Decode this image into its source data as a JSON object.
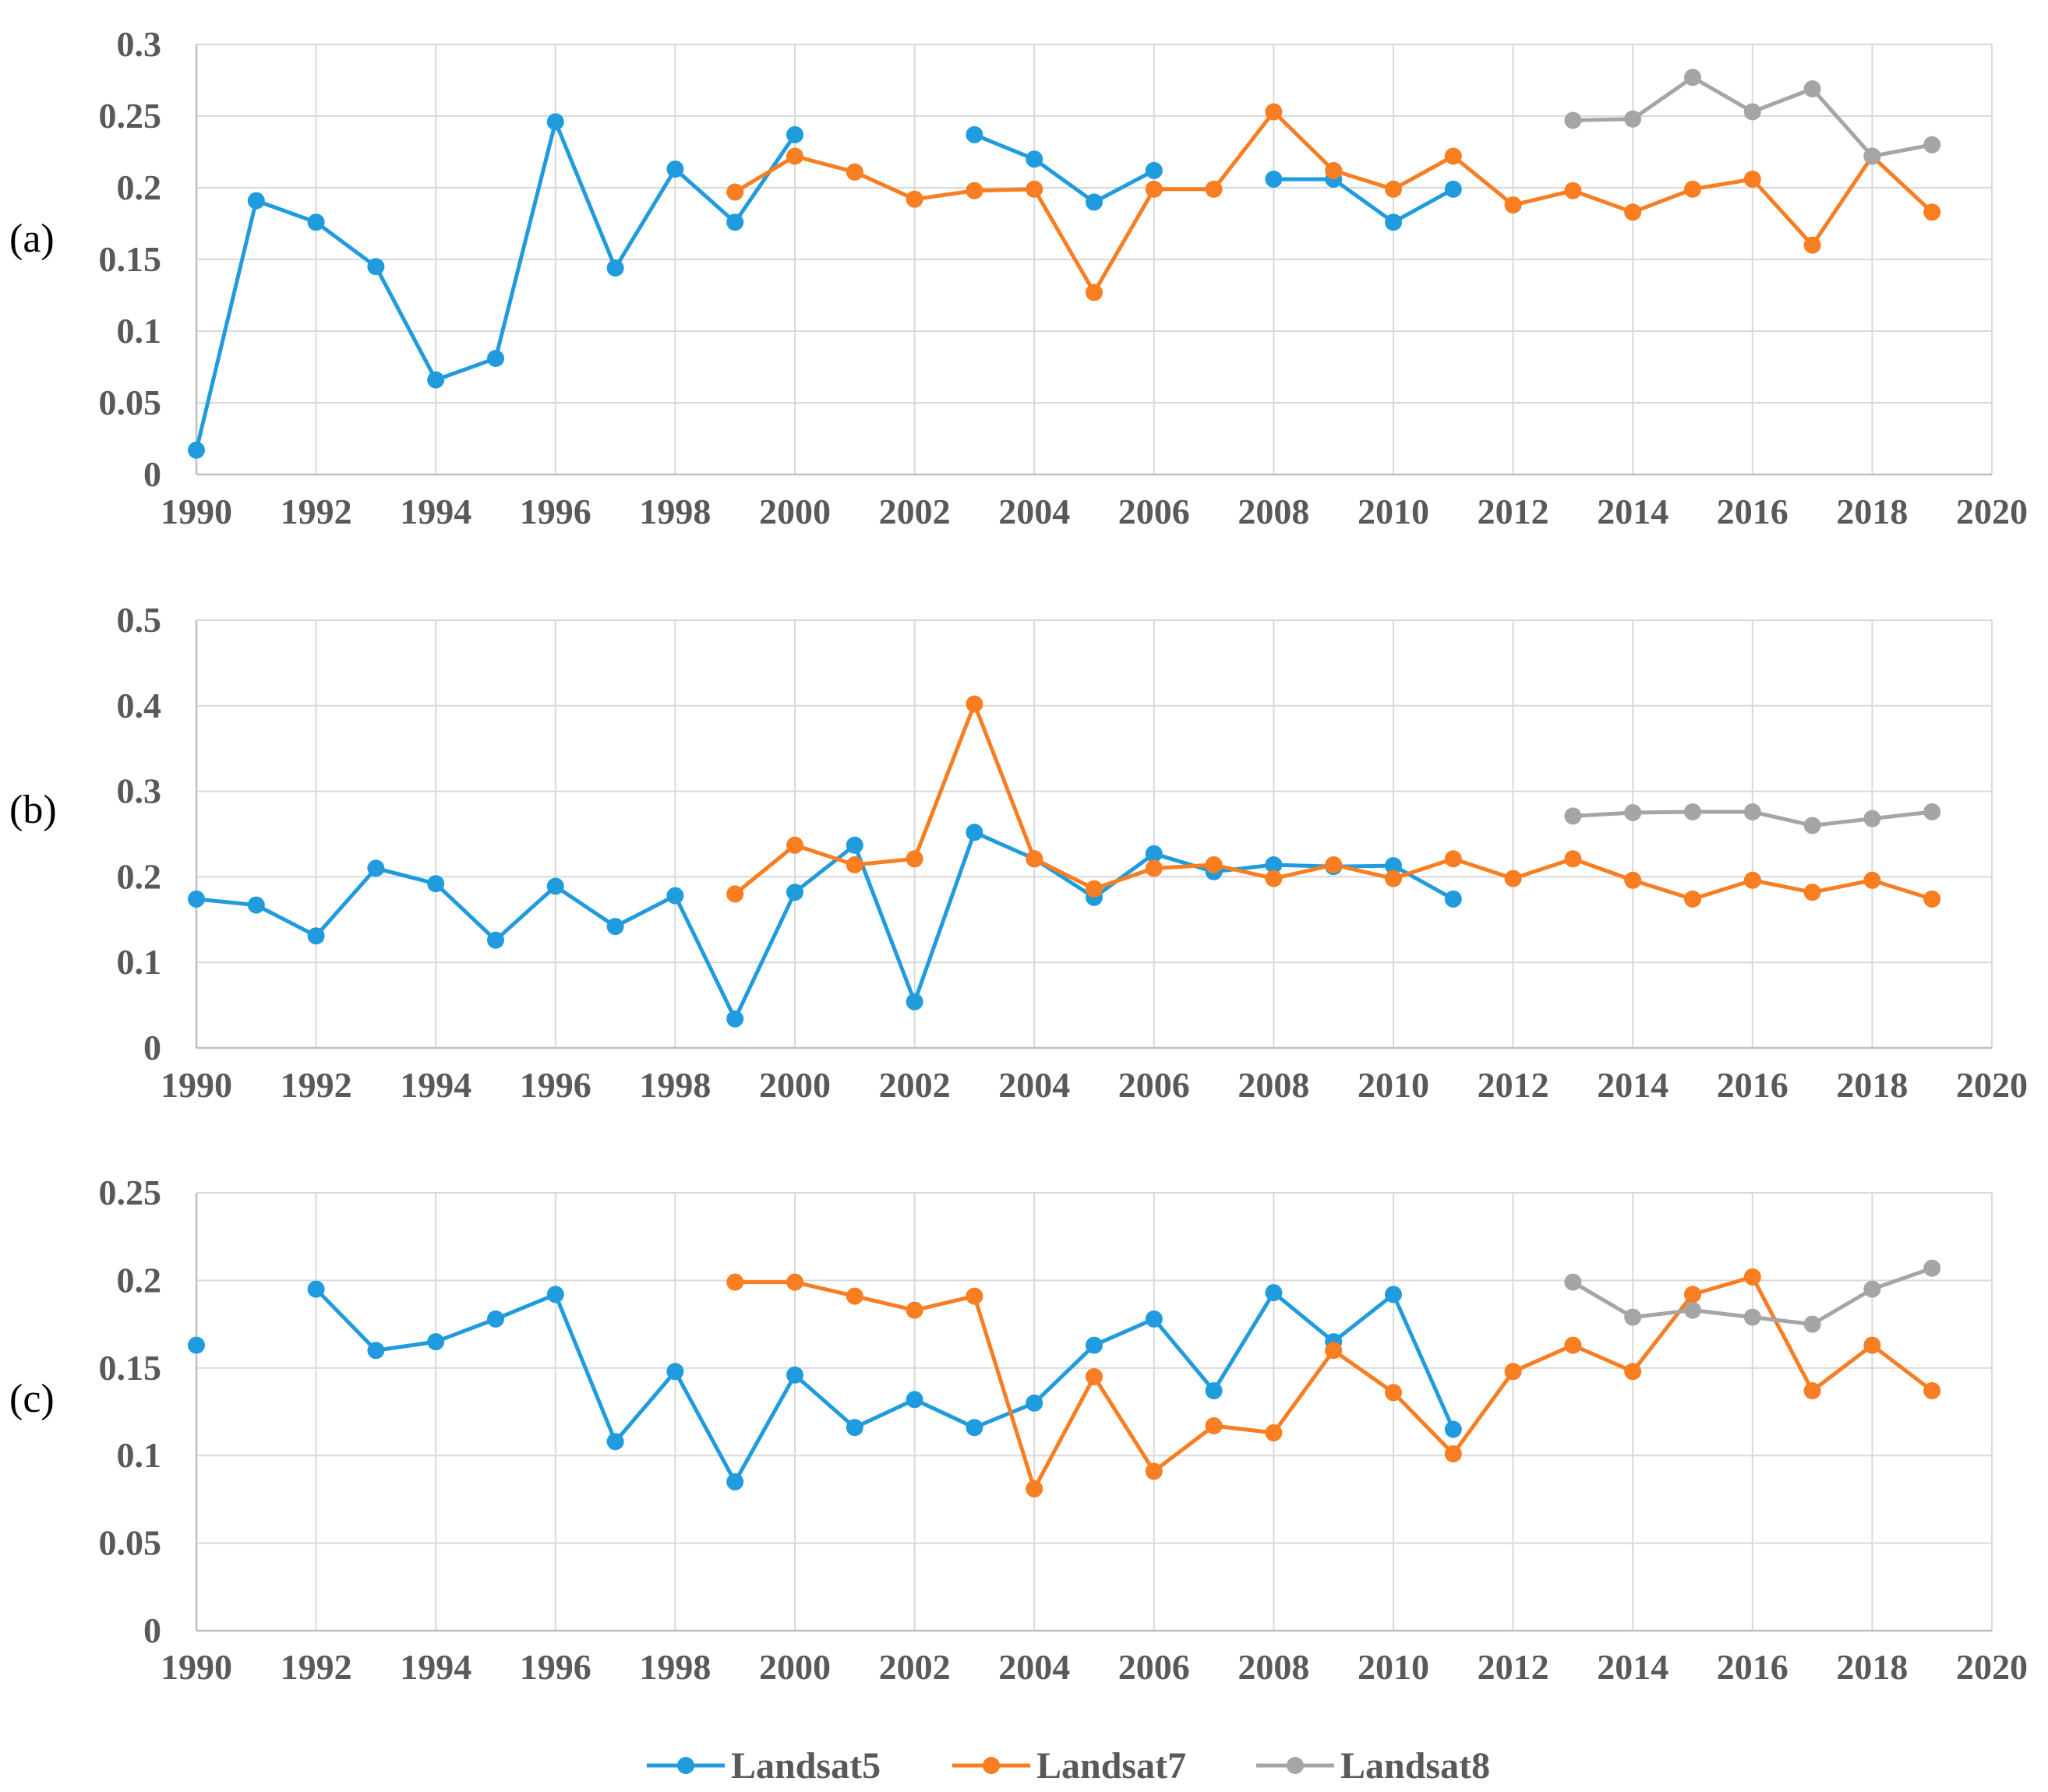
{
  "colors": {
    "Landsat5": "#1F9BDE",
    "Landsat7": "#F97D21",
    "Landsat8": "#A5A5A5",
    "grid": "#D9D9D9",
    "axis": "#BFBFBF"
  },
  "legend": [
    "Landsat5",
    "Landsat7",
    "Landsat8"
  ],
  "chart_data": [
    {
      "type": "line",
      "panel_label": "(a)",
      "x_ticks": [
        "1990",
        "1992",
        "1994",
        "1996",
        "1998",
        "2000",
        "2002",
        "2004",
        "2006",
        "2008",
        "2010",
        "2012",
        "2014",
        "2016",
        "2018",
        "2020"
      ],
      "xlim": [
        1990,
        2020
      ],
      "ylim": [
        0,
        0.3
      ],
      "y_ticks": [
        "0",
        "0.05",
        "0.1",
        "0.15",
        "0.2",
        "0.25",
        "0.3"
      ],
      "grid": true,
      "series": [
        {
          "name": "Landsat5",
          "segments": [
            [
              [
                1990,
                0.017
              ],
              [
                1991,
                0.191
              ],
              [
                1992,
                0.176
              ],
              [
                1993,
                0.145
              ],
              [
                1994,
                0.066
              ],
              [
                1995,
                0.081
              ],
              [
                1996,
                0.246
              ],
              [
                1997,
                0.144
              ],
              [
                1998,
                0.213
              ],
              [
                1999,
                0.176
              ],
              [
                2000,
                0.237
              ]
            ],
            [
              [
                2003,
                0.237
              ],
              [
                2004,
                0.22
              ],
              [
                2005,
                0.19
              ],
              [
                2006,
                0.212
              ]
            ],
            [
              [
                2008,
                0.206
              ],
              [
                2009,
                0.206
              ],
              [
                2010,
                0.176
              ],
              [
                2011,
                0.199
              ]
            ]
          ]
        },
        {
          "name": "Landsat7",
          "segments": [
            [
              [
                1999,
                0.197
              ],
              [
                2000,
                0.222
              ],
              [
                2001,
                0.211
              ],
              [
                2002,
                0.192
              ],
              [
                2003,
                0.198
              ],
              [
                2004,
                0.199
              ],
              [
                2005,
                0.127
              ],
              [
                2006,
                0.199
              ],
              [
                2007,
                0.199
              ],
              [
                2008,
                0.253
              ],
              [
                2009,
                0.212
              ],
              [
                2010,
                0.199
              ],
              [
                2011,
                0.222
              ],
              [
                2012,
                0.188
              ],
              [
                2013,
                0.198
              ],
              [
                2014,
                0.183
              ],
              [
                2015,
                0.199
              ],
              [
                2016,
                0.206
              ],
              [
                2017,
                0.16
              ],
              [
                2018,
                0.222
              ],
              [
                2019,
                0.183
              ]
            ]
          ]
        },
        {
          "name": "Landsat8",
          "segments": [
            [
              [
                2013,
                0.247
              ],
              [
                2014,
                0.248
              ],
              [
                2015,
                0.277
              ],
              [
                2016,
                0.253
              ],
              [
                2017,
                0.269
              ],
              [
                2018,
                0.222
              ],
              [
                2019,
                0.23
              ]
            ]
          ]
        }
      ]
    },
    {
      "type": "line",
      "panel_label": "(b)",
      "x_ticks": [
        "1990",
        "1992",
        "1994",
        "1996",
        "1998",
        "2000",
        "2002",
        "2004",
        "2006",
        "2008",
        "2010",
        "2012",
        "2014",
        "2016",
        "2018",
        "2020"
      ],
      "xlim": [
        1990,
        2020
      ],
      "ylim": [
        0,
        0.5
      ],
      "y_ticks": [
        "0",
        "0.1",
        "0.2",
        "0.3",
        "0.4",
        "0.5"
      ],
      "grid": true,
      "series": [
        {
          "name": "Landsat5",
          "segments": [
            [
              [
                1990,
                0.174
              ],
              [
                1991,
                0.167
              ],
              [
                1992,
                0.131
              ],
              [
                1993,
                0.21
              ],
              [
                1994,
                0.192
              ],
              [
                1995,
                0.126
              ],
              [
                1996,
                0.189
              ],
              [
                1997,
                0.142
              ],
              [
                1998,
                0.178
              ],
              [
                1999,
                0.034
              ],
              [
                2000,
                0.182
              ],
              [
                2001,
                0.237
              ],
              [
                2002,
                0.054
              ],
              [
                2003,
                0.252
              ],
              [
                2004,
                0.221
              ],
              [
                2005,
                0.176
              ],
              [
                2006,
                0.227
              ],
              [
                2007,
                0.206
              ],
              [
                2008,
                0.214
              ],
              [
                2009,
                0.212
              ],
              [
                2010,
                0.213
              ],
              [
                2011,
                0.174
              ]
            ]
          ]
        },
        {
          "name": "Landsat7",
          "segments": [
            [
              [
                1999,
                0.18
              ],
              [
                2000,
                0.237
              ],
              [
                2001,
                0.214
              ],
              [
                2002,
                0.221
              ],
              [
                2003,
                0.402
              ],
              [
                2004,
                0.221
              ],
              [
                2005,
                0.186
              ],
              [
                2006,
                0.21
              ],
              [
                2007,
                0.214
              ],
              [
                2008,
                0.198
              ],
              [
                2009,
                0.214
              ],
              [
                2010,
                0.198
              ],
              [
                2011,
                0.221
              ],
              [
                2012,
                0.198
              ],
              [
                2013,
                0.221
              ],
              [
                2014,
                0.196
              ],
              [
                2015,
                0.174
              ],
              [
                2016,
                0.196
              ],
              [
                2017,
                0.182
              ],
              [
                2018,
                0.196
              ],
              [
                2019,
                0.174
              ]
            ]
          ]
        },
        {
          "name": "Landsat8",
          "segments": [
            [
              [
                2013,
                0.271
              ],
              [
                2014,
                0.275
              ],
              [
                2015,
                0.276
              ],
              [
                2016,
                0.276
              ],
              [
                2017,
                0.26
              ],
              [
                2018,
                0.268
              ],
              [
                2019,
                0.276
              ]
            ]
          ]
        }
      ]
    },
    {
      "type": "line",
      "panel_label": "(c)",
      "x_ticks": [
        "1990",
        "1992",
        "1994",
        "1996",
        "1998",
        "2000",
        "2002",
        "2004",
        "2006",
        "2008",
        "2010",
        "2012",
        "2014",
        "2016",
        "2018",
        "2020"
      ],
      "xlim": [
        1990,
        2020
      ],
      "ylim": [
        0,
        0.25
      ],
      "y_ticks": [
        "0",
        "0.05",
        "0.1",
        "0.15",
        "0.2",
        "0.25"
      ],
      "grid": true,
      "series": [
        {
          "name": "Landsat5",
          "segments": [
            [
              [
                1990,
                0.163
              ]
            ],
            [
              [
                1992,
                0.195
              ],
              [
                1993,
                0.16
              ],
              [
                1994,
                0.165
              ],
              [
                1995,
                0.178
              ],
              [
                1996,
                0.192
              ],
              [
                1997,
                0.108
              ],
              [
                1998,
                0.148
              ],
              [
                1999,
                0.085
              ],
              [
                2000,
                0.146
              ],
              [
                2001,
                0.116
              ],
              [
                2002,
                0.132
              ],
              [
                2003,
                0.116
              ],
              [
                2004,
                0.13
              ],
              [
                2005,
                0.163
              ],
              [
                2006,
                0.178
              ],
              [
                2007,
                0.137
              ],
              [
                2008,
                0.193
              ],
              [
                2009,
                0.165
              ],
              [
                2010,
                0.192
              ],
              [
                2011,
                0.115
              ]
            ]
          ]
        },
        {
          "name": "Landsat7",
          "segments": [
            [
              [
                1999,
                0.199
              ],
              [
                2000,
                0.199
              ],
              [
                2001,
                0.191
              ],
              [
                2002,
                0.183
              ],
              [
                2003,
                0.191
              ],
              [
                2004,
                0.081
              ],
              [
                2005,
                0.145
              ],
              [
                2006,
                0.091
              ],
              [
                2007,
                0.117
              ],
              [
                2008,
                0.113
              ],
              [
                2009,
                0.16
              ],
              [
                2010,
                0.136
              ],
              [
                2011,
                0.101
              ],
              [
                2012,
                0.148
              ],
              [
                2013,
                0.163
              ],
              [
                2014,
                0.148
              ],
              [
                2015,
                0.192
              ],
              [
                2016,
                0.202
              ],
              [
                2017,
                0.137
              ],
              [
                2018,
                0.163
              ],
              [
                2019,
                0.137
              ]
            ]
          ]
        },
        {
          "name": "Landsat8",
          "segments": [
            [
              [
                2013,
                0.199
              ],
              [
                2014,
                0.179
              ],
              [
                2015,
                0.183
              ],
              [
                2016,
                0.179
              ],
              [
                2017,
                0.175
              ],
              [
                2018,
                0.195
              ],
              [
                2019,
                0.207
              ]
            ]
          ]
        }
      ]
    }
  ]
}
